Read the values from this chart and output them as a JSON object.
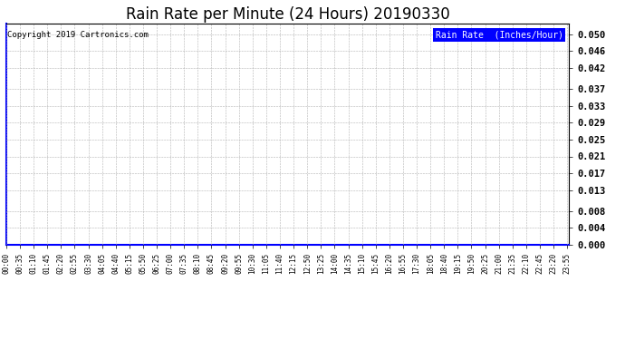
{
  "title": "Rain Rate per Minute (24 Hours) 20190330",
  "copyright_text": "Copyright 2019 Cartronics.com",
  "legend_label": "Rain Rate  (Inches/Hour)",
  "legend_bg_color": "#0000ff",
  "legend_text_color": "#ffffff",
  "yticks": [
    0.0,
    0.004,
    0.008,
    0.013,
    0.017,
    0.021,
    0.025,
    0.029,
    0.033,
    0.037,
    0.042,
    0.046,
    0.05
  ],
  "ylim": [
    0.0,
    0.0525
  ],
  "line_color": "#0000ff",
  "grid_color": "#aaaaaa",
  "background_color": "#ffffff",
  "title_fontsize": 12,
  "copyright_fontsize": 6.5,
  "legend_fontsize": 7,
  "ytick_fontsize": 7.5,
  "xtick_fontsize": 5.5,
  "x_tick_interval_minutes": 35,
  "total_minutes": 1440
}
